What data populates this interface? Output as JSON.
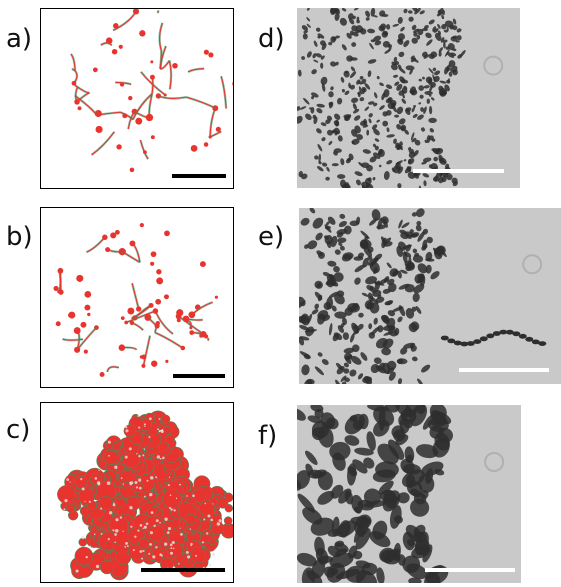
{
  "panels": [
    {
      "label": "a)",
      "kind": "simulation",
      "pattern": "sparse-branching-network"
    },
    {
      "label": "b)",
      "kind": "simulation",
      "pattern": "denser-branching-network"
    },
    {
      "label": "c)",
      "kind": "simulation",
      "pattern": "compact-filled-colony"
    },
    {
      "label": "d)",
      "kind": "micrograph",
      "pattern": "fine-fragmented-front"
    },
    {
      "label": "e)",
      "kind": "micrograph",
      "pattern": "fragmented-front-with-chain"
    },
    {
      "label": "f)",
      "kind": "micrograph",
      "pattern": "thick-fingering-front"
    }
  ],
  "colors": {
    "simulation_fill": "#e8332e",
    "simulation_edge": "#2f9a6a",
    "micrograph_background": "#c9c9c9",
    "micrograph_pattern": "#2e2e2e",
    "scalebar_dark": "#000000",
    "scalebar_light": "#ffffff"
  }
}
